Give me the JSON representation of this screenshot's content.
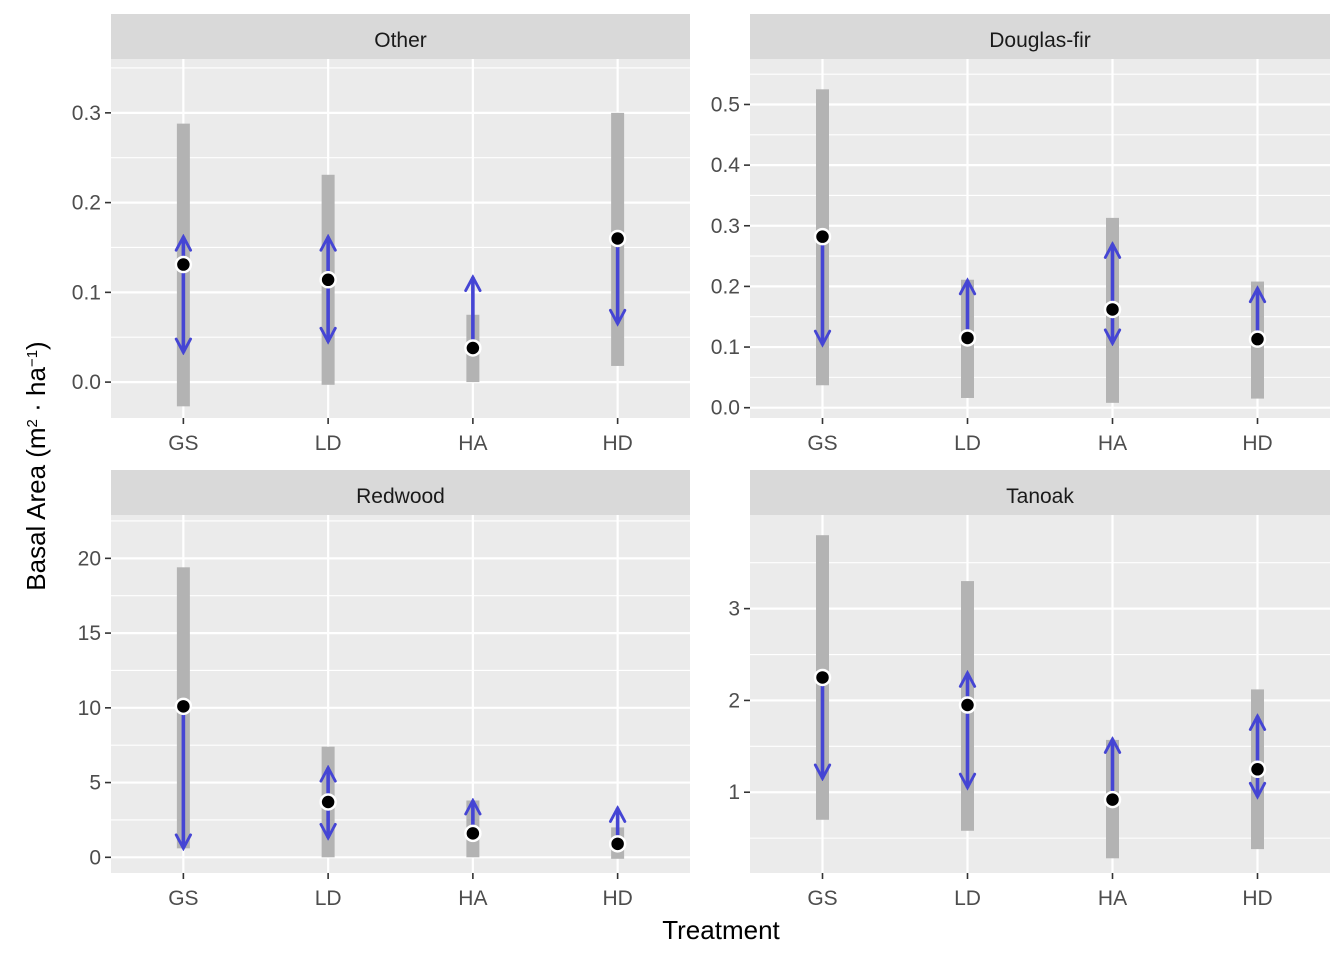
{
  "chart_data": {
    "type": "faceted-range-plot",
    "xlabel": "Treatment",
    "ylabel": {
      "prefix": "Basal Area (m",
      "sup1": "2",
      "middle": " · ha",
      "sup2": "−1",
      "suffix": ")"
    },
    "categories": [
      "GS",
      "LD",
      "HA",
      "HD"
    ],
    "colors": {
      "panel_bg": "#ebebeb",
      "strip_bg": "#d9d9d9",
      "grid": "#ffffff",
      "range_bar": "#b3b3b3",
      "arrow": "#4545d4",
      "point": "#000000"
    },
    "panels": [
      {
        "title": "Other",
        "ylim": [
          -0.04,
          0.36
        ],
        "yticks": [
          0.0,
          0.1,
          0.2,
          0.3
        ],
        "ytick_labels": [
          "0.0",
          "0.1",
          "0.2",
          "0.3"
        ],
        "data": [
          {
            "category": "GS",
            "low": -0.027,
            "high": 0.288,
            "point": 0.131,
            "arrow_low": 0.033,
            "arrow_high": 0.162
          },
          {
            "category": "LD",
            "low": -0.003,
            "high": 0.231,
            "point": 0.114,
            "arrow_low": 0.045,
            "arrow_high": 0.162
          },
          {
            "category": "HA",
            "low": 0.0,
            "high": 0.075,
            "point": 0.038,
            "arrow_low": 0.038,
            "arrow_high": 0.117
          },
          {
            "category": "HD",
            "low": 0.018,
            "high": 0.3,
            "point": 0.16,
            "arrow_low": 0.065,
            "arrow_high": 0.16
          }
        ]
      },
      {
        "title": "Douglas-fir",
        "ylim": [
          -0.017,
          0.575
        ],
        "yticks": [
          0.0,
          0.1,
          0.2,
          0.3,
          0.4,
          0.5
        ],
        "ytick_labels": [
          "0.0",
          "0.1",
          "0.2",
          "0.3",
          "0.4",
          "0.5"
        ],
        "data": [
          {
            "category": "GS",
            "low": 0.037,
            "high": 0.525,
            "point": 0.282,
            "arrow_low": 0.104,
            "arrow_high": 0.282
          },
          {
            "category": "LD",
            "low": 0.016,
            "high": 0.211,
            "point": 0.115,
            "arrow_low": 0.128,
            "arrow_high": 0.21
          },
          {
            "category": "HA",
            "low": 0.008,
            "high": 0.313,
            "point": 0.162,
            "arrow_low": 0.106,
            "arrow_high": 0.27
          },
          {
            "category": "HD",
            "low": 0.015,
            "high": 0.208,
            "point": 0.113,
            "arrow_low": 0.113,
            "arrow_high": 0.197
          }
        ]
      },
      {
        "title": "Redwood",
        "ylim": [
          -1.05,
          22.9
        ],
        "yticks": [
          0,
          5,
          10,
          15,
          20
        ],
        "ytick_labels": [
          "0",
          "5",
          "10",
          "15",
          "20"
        ],
        "data": [
          {
            "category": "GS",
            "low": 0.6,
            "high": 19.4,
            "point": 10.1,
            "arrow_low": 0.6,
            "arrow_high": 10.1
          },
          {
            "category": "LD",
            "low": 0.0,
            "high": 7.4,
            "point": 3.7,
            "arrow_low": 1.3,
            "arrow_high": 6.0
          },
          {
            "category": "HA",
            "low": 0.0,
            "high": 3.8,
            "point": 1.6,
            "arrow_low": 1.6,
            "arrow_high": 3.8
          },
          {
            "category": "HD",
            "low": -0.1,
            "high": 2.0,
            "point": 0.9,
            "arrow_low": 0.9,
            "arrow_high": 3.3
          }
        ]
      },
      {
        "title": "Tanoak",
        "ylim": [
          0.12,
          4.02
        ],
        "yticks": [
          1,
          2,
          3
        ],
        "ytick_labels": [
          "1",
          "2",
          "3"
        ],
        "data": [
          {
            "category": "GS",
            "low": 0.7,
            "high": 3.8,
            "point": 2.25,
            "arrow_low": 1.15,
            "arrow_high": 2.25
          },
          {
            "category": "LD",
            "low": 0.58,
            "high": 3.3,
            "point": 1.95,
            "arrow_low": 1.05,
            "arrow_high": 2.3
          },
          {
            "category": "HA",
            "low": 0.28,
            "high": 1.57,
            "point": 0.92,
            "arrow_low": 0.92,
            "arrow_high": 1.58
          },
          {
            "category": "HD",
            "low": 0.38,
            "high": 2.12,
            "point": 1.25,
            "arrow_low": 0.95,
            "arrow_high": 1.83
          }
        ]
      }
    ]
  }
}
